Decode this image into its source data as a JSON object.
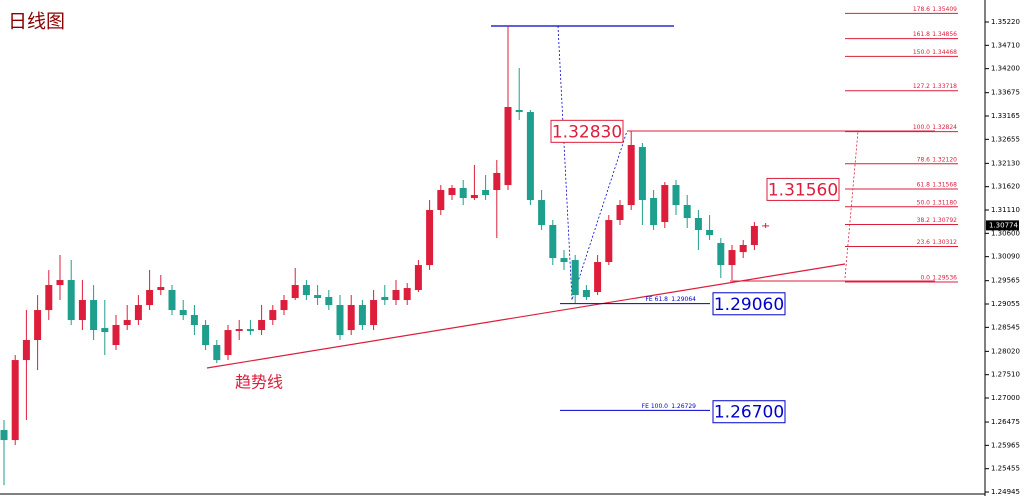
{
  "chart_data": {
    "type": "candlestick",
    "title": "日线图",
    "trendline_label": "趋势线",
    "up_color": "#dc1e3c",
    "down_color": "#1e9e8c",
    "open": [
      1.263,
      1.26081,
      1.2783,
      1.28268,
      1.28923,
      1.2947,
      1.29579,
      1.28705,
      1.29142,
      1.2853,
      1.28158,
      1.28596,
      1.28705,
      1.29033,
      1.29361,
      1.29361,
      1.28923,
      1.28814,
      1.28596,
      1.28158,
      1.2794,
      1.28464,
      1.28508,
      1.28486,
      1.28705,
      1.28923,
      1.29186,
      1.2947,
      1.29251,
      1.29208,
      1.29033,
      1.28486,
      1.29033,
      1.28596,
      1.29208,
      1.29142,
      1.29142,
      1.29361,
      1.29907,
      1.3111,
      1.31438,
      1.31591,
      1.31372,
      1.31547,
      1.31547,
      1.31656,
      1.33296,
      1.33252,
      1.31328,
      1.30782,
      1.3006,
      1.30017,
      1.29361,
      1.29317,
      1.29973,
      1.30891,
      1.31219,
      1.32487,
      1.31372,
      1.30847,
      1.31656,
      1.31219,
      1.30935,
      1.30673,
      1.30388,
      1.29907,
      1.30191,
      1.30345,
      1.3076
    ],
    "high": [
      1.26519,
      1.2794,
      1.28923,
      1.29251,
      1.29798,
      1.30126,
      1.30017,
      1.29579,
      1.2947,
      1.29142,
      1.28814,
      1.29033,
      1.29251,
      1.29798,
      1.29689,
      1.2947,
      1.29142,
      1.29033,
      1.28705,
      1.28268,
      1.28596,
      1.28705,
      1.28705,
      1.29033,
      1.29033,
      1.29251,
      1.29842,
      1.29579,
      1.2947,
      1.29361,
      1.29251,
      1.29251,
      1.29142,
      1.29361,
      1.2947,
      1.29579,
      1.29514,
      1.30017,
      1.31328,
      1.31656,
      1.31656,
      1.31766,
      1.32094,
      1.31875,
      1.32203,
      1.35133,
      1.34214,
      1.33296,
      1.31547,
      1.30891,
      1.30235,
      1.30126,
      1.2947,
      1.30126,
      1.31,
      1.31328,
      1.32837,
      1.32575,
      1.31547,
      1.31722,
      1.31766,
      1.31438,
      1.3111,
      1.31,
      1.30498,
      1.30345,
      1.30454,
      1.30847,
      1.30826
    ],
    "low": [
      1.25097,
      1.25972,
      1.26519,
      1.27612,
      1.28705,
      1.29142,
      1.28596,
      1.28486,
      1.28268,
      1.2794,
      1.28049,
      1.28486,
      1.28596,
      1.28923,
      1.29251,
      1.28814,
      1.28705,
      1.28377,
      1.28049,
      1.27765,
      1.2783,
      1.28268,
      1.28377,
      1.28377,
      1.28596,
      1.28814,
      1.29142,
      1.29142,
      1.29033,
      1.28923,
      1.28268,
      1.28377,
      1.28486,
      1.28486,
      1.29033,
      1.29033,
      1.29033,
      1.29317,
      1.29798,
      1.31,
      1.31328,
      1.31219,
      1.31328,
      1.31328,
      1.30498,
      1.31547,
      1.33077,
      1.31219,
      1.30673,
      1.29907,
      1.29798,
      1.29077,
      1.29142,
      1.29251,
      1.29907,
      1.30782,
      1.3111,
      1.30782,
      1.30673,
      1.30716,
      1.31,
      1.30716,
      1.30235,
      1.30454,
      1.29623,
      1.29579,
      1.3006,
      1.30235,
      1.30716
    ],
    "close": [
      1.26081,
      1.2783,
      1.28268,
      1.28923,
      1.2947,
      1.29579,
      1.28705,
      1.29142,
      1.28486,
      1.28442,
      1.28596,
      1.28705,
      1.29033,
      1.29361,
      1.29426,
      1.28923,
      1.28814,
      1.28596,
      1.28158,
      1.2783,
      1.28486,
      1.28508,
      1.28464,
      1.28705,
      1.28923,
      1.29142,
      1.2947,
      1.29251,
      1.29186,
      1.29033,
      1.28377,
      1.29033,
      1.28596,
      1.29142,
      1.29142,
      1.29361,
      1.29404,
      1.29907,
      1.3111,
      1.31547,
      1.31591,
      1.31372,
      1.31438,
      1.31438,
      1.31919,
      1.33362,
      1.33252,
      1.31328,
      1.30782,
      1.3006,
      1.29973,
      1.29251,
      1.29208,
      1.29973,
      1.30891,
      1.31219,
      1.32531,
      1.31328,
      1.30782,
      1.31656,
      1.31219,
      1.30935,
      1.30673,
      1.30563,
      1.29907,
      1.30235,
      1.30345,
      1.3076,
      1.30774
    ],
    "ylim": [
      1.24858,
      1.35701
    ],
    "yticks": [
      {
        "value": 1.3522,
        "label": "1.35220"
      },
      {
        "value": 1.3471,
        "label": "1.34710"
      },
      {
        "value": 1.342,
        "label": "1.34200"
      },
      1.33675,
      1.33165,
      1.32655,
      {
        "value": 1.3213,
        "label": "1.32130"
      },
      {
        "value": 1.3162,
        "label": "1.31620"
      },
      {
        "value": 1.3111,
        "label": "1.31110"
      },
      {
        "value": 1.306,
        "label": "1.30600"
      },
      {
        "value": 1.3009,
        "label": "1.30090"
      },
      1.29565,
      1.29055,
      1.28545,
      {
        "value": 1.2802,
        "label": "1.28020"
      },
      {
        "value": 1.2751,
        "label": "1.27510"
      },
      {
        "value": 1.27,
        "label": "1.27000"
      },
      1.26475,
      1.25965,
      1.25455,
      1.24945
    ],
    "current_price": 1.30774,
    "fib_levels": [
      {
        "ratio": "178.6",
        "price": 1.35409
      },
      {
        "ratio": "161.8",
        "price": 1.34856
      },
      {
        "ratio": "150.0",
        "price": 1.34468
      },
      {
        "ratio": "127.2",
        "price": 1.33718
      },
      {
        "ratio": "100.0",
        "price": 1.32824
      },
      {
        "ratio": "78.6",
        "price": {
          "value": 1.3212,
          "label": "1.32120"
        }
      },
      {
        "ratio": "61.8",
        "price": 1.31568
      },
      {
        "ratio": "50.0",
        "price": {
          "value": 1.3118,
          "label": "1.31180"
        }
      },
      {
        "ratio": "38.2",
        "price": 1.30792
      },
      {
        "ratio": "23.6",
        "price": 1.30312
      },
      {
        "ratio": "0.0",
        "price": 1.29536
      }
    ],
    "fe_levels": [
      {
        "label": "FE 61.8",
        "price": 1.29064
      },
      {
        "label": "FE 100.0",
        "price": 1.26729
      }
    ],
    "price_labels": [
      {
        "value": 1.3283,
        "label": "1.32830",
        "color": "#dc1e3c"
      },
      {
        "value": 1.3156,
        "label": "1.31560",
        "color": "#dc1e3c"
      },
      {
        "value": 1.2906,
        "label": "1.29060",
        "color": "#0000cc"
      },
      {
        "value": 1.267,
        "label": "1.26700",
        "color": "#0000cc"
      }
    ]
  }
}
